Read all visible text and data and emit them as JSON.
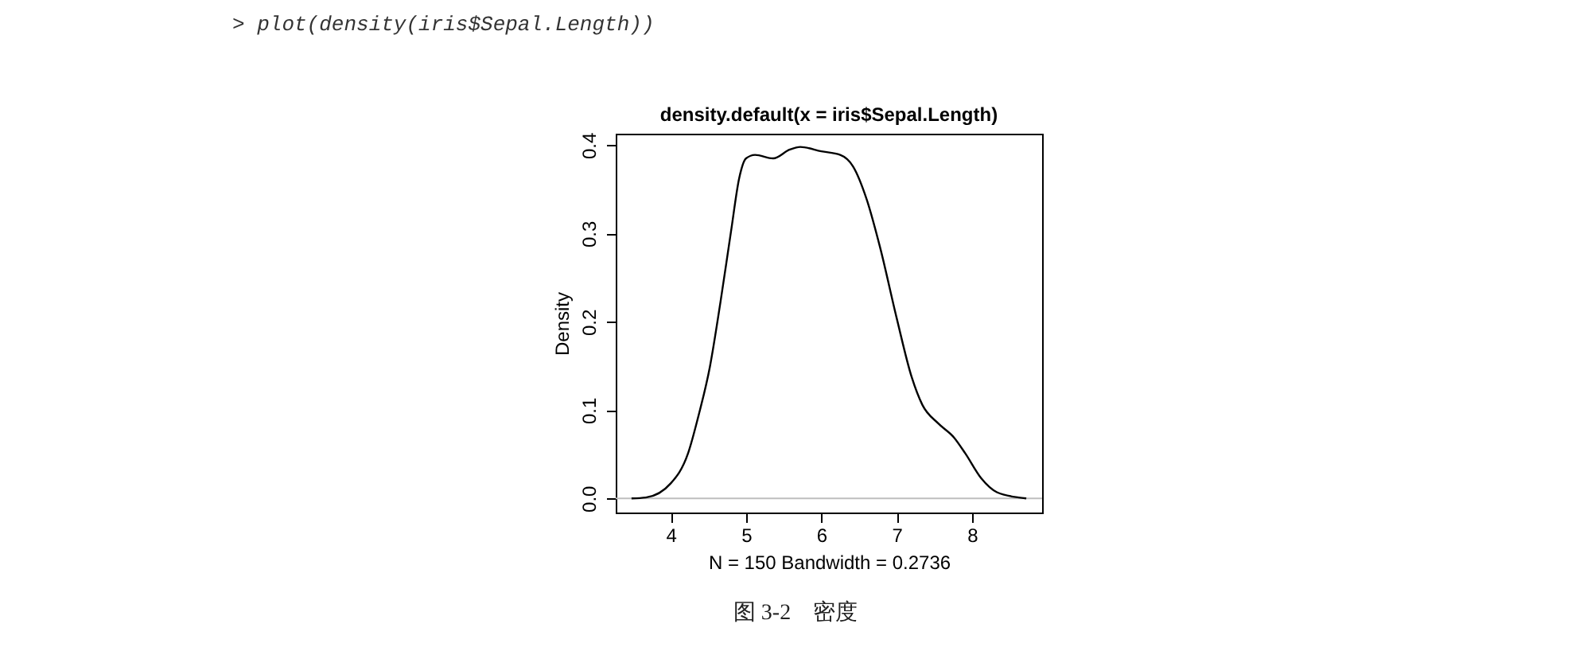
{
  "chart_data": {
    "type": "line",
    "title": "density.default(x = iris$Sepal.Length)",
    "xlabel": "N = 150   Bandwidth = 0.2736",
    "ylabel": "Density",
    "annotations": [
      "> plot(density(iris$Sepal.Length))",
      "图 3-2　密度"
    ],
    "x": [
      3.48,
      3.67,
      4.0,
      4.23,
      4.37,
      4.52,
      4.66,
      4.8,
      4.91,
      5.0,
      5.12,
      5.36,
      5.58,
      5.72,
      6.0,
      6.25,
      6.42,
      6.6,
      6.78,
      7.0,
      7.2,
      7.34,
      7.55,
      7.76,
      7.91,
      8.12,
      8.33,
      8.62,
      8.72
    ],
    "series": [
      {
        "color": "#000000",
        "values": [
          0,
          0.001,
          0.017,
          0.051,
          0.094,
          0.149,
          0.222,
          0.302,
          0.363,
          0.385,
          0.389,
          0.385,
          0.395,
          0.398,
          0.393,
          0.389,
          0.376,
          0.339,
          0.284,
          0.204,
          0.137,
          0.106,
          0.085,
          0.069,
          0.051,
          0.023,
          0.007,
          0.001,
          0
        ]
      }
    ],
    "xlim": [
      3.27,
      8.93
    ],
    "xticks": [
      4,
      5,
      6,
      7,
      8
    ],
    "ylim": [
      -0.016,
      0.413
    ],
    "yticks": [
      {
        "value": 0,
        "label": "0.0"
      },
      0.1,
      0.2,
      0.3,
      0.4
    ],
    "ref_lines": [
      {
        "axis": "y",
        "value": 0,
        "color": "#bebebe"
      }
    ],
    "grid": false,
    "marker": "none",
    "line_style": "solid"
  }
}
